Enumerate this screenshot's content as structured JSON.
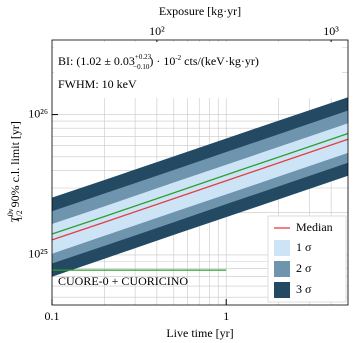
{
  "chart_data": {
    "type": "band",
    "top_axis_label": "Exposure [kg·yr]",
    "xlabel": "Live time [yr]",
    "ylabel": {
      "main": "T",
      "sup": "0ν",
      "sub": "1/2",
      "rest": " 90% c.l. limit [yr]"
    },
    "annotation_bi": {
      "prefix": "BI: (1.02 ± 0.03",
      "up": "+0.23",
      "down": "−0.10",
      "mid": ") · 10",
      "exp": "-2",
      "suffix": " cts/(keV·kg·yr)"
    },
    "annotation_fwhm": "FWHM: 10 keV",
    "log_x": true,
    "log_y": true,
    "grid": true,
    "xlim": [
      0.1,
      5
    ],
    "xticks": [
      0.1,
      1
    ],
    "xminorticks": [
      0.2,
      0.3,
      0.4,
      0.5,
      0.6,
      0.7,
      0.8,
      0.9,
      2,
      3,
      4,
      5
    ],
    "x2lim": [
      25,
      1250
    ],
    "x2ticks": [
      {
        "value": 100,
        "label": "10²"
      },
      {
        "value": 1000,
        "label": "10³"
      }
    ],
    "ylim": [
      4.4e+24,
      3.4e+26
    ],
    "yticks": [
      {
        "value": 1e+25,
        "label": "10²⁵"
      },
      {
        "value": 1e+26,
        "label": "10²⁶"
      }
    ],
    "yminorticks": [
      5e+24,
      6e+24,
      7e+24,
      8e+24,
      9e+24,
      2e+25,
      3e+25,
      4e+25,
      5e+25,
      6e+25,
      7e+25,
      8e+25,
      9e+25,
      2e+26,
      3e+26
    ],
    "x": [
      0.1,
      0.2,
      0.5,
      1,
      2,
      5
    ],
    "bands": [
      {
        "name": "3 σ",
        "color": "#234a62",
        "low": [
          7e+24,
          9.4e+24,
          1.39e+25,
          1.86e+25,
          2.49e+25,
          3.67e+25
        ],
        "high": [
          2.56e+25,
          3.42e+25,
          5.04e+25,
          6.76e+25,
          9.06e+25,
          1.33e+26
        ]
      },
      {
        "name": "2 σ",
        "color": "#6f95ae",
        "low": [
          8.7e+24,
          1.16e+25,
          1.71e+25,
          2.3e+25,
          3.08e+25,
          4.54e+25
        ],
        "high": [
          2.05e+25,
          2.74e+25,
          4.03e+25,
          5.41e+25,
          7.25e+25,
          1.07e+26
        ]
      },
      {
        "name": "1 σ",
        "color": "#cde4f7",
        "low": [
          1.02e+25,
          1.37e+25,
          2.02e+25,
          2.7e+25,
          3.62e+25,
          5.34e+25
        ],
        "high": [
          1.66e+25,
          2.22e+25,
          3.28e+25,
          4.39e+25,
          5.89e+25,
          8.67e+25
        ]
      }
    ],
    "series": [
      {
        "name": "Median",
        "color": "#e04040",
        "values": [
          1.28e+25,
          1.71e+25,
          2.52e+25,
          3.38e+25,
          4.53e+25,
          6.67e+25
        ]
      },
      {
        "color": "#2ca02c",
        "values": [
          1.41e+25,
          1.88e+25,
          2.77e+25,
          3.72e+25,
          4.98e+25,
          7.34e+25
        ]
      }
    ],
    "reference": {
      "label": "CUORE-0 + CUORICINO",
      "color": "#2ca02c",
      "value": 7.8e+24,
      "x": [
        0.1,
        1
      ]
    }
  }
}
